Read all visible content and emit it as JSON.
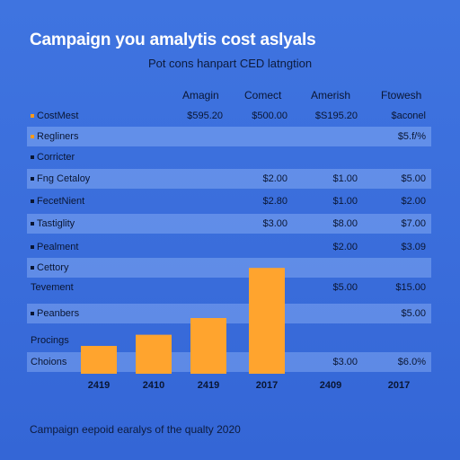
{
  "title": "Campaign you amalytis cost aslyals",
  "subtitle": "Pot cons hanpart CED latngtion",
  "columns": [
    "Amagin",
    "Comect",
    "Amerish",
    "Ftowesh"
  ],
  "rows": [
    {
      "label": "CostMest",
      "cells": [
        "$595.20",
        "$500.00",
        "$S195.20",
        "$aconel"
      ],
      "band": false,
      "bullet": "orange"
    },
    {
      "label": "Regliners",
      "cells": [
        "",
        "",
        "",
        "$5.f/%"
      ],
      "band": true,
      "bullet": "orange"
    },
    {
      "label": "Corricter",
      "cells": [
        "",
        "",
        "",
        ""
      ],
      "band": false,
      "bullet": "dot"
    },
    {
      "label": "Fng Cetaloy",
      "cells": [
        "",
        "$2.00",
        "$1.00",
        "$5.00"
      ],
      "band": true,
      "bullet": "square"
    },
    {
      "label": "FecetNient",
      "cells": [
        "",
        "$2.80",
        "$1.00",
        "$2.00"
      ],
      "band": false,
      "bullet": "square"
    },
    {
      "label": "Tastiglity",
      "cells": [
        "",
        "$3.00",
        "$8.00",
        "$7.00"
      ],
      "band": true,
      "bullet": "square"
    },
    {
      "label": "Pealment",
      "cells": [
        "",
        "",
        "$2.00",
        "$3.09"
      ],
      "band": false,
      "bullet": "square"
    },
    {
      "label": "Cettory",
      "cells": [
        "",
        "",
        "",
        ""
      ],
      "band": true,
      "bullet": "square"
    },
    {
      "label": "Tevement",
      "cells": [
        "",
        "",
        "$5.00",
        "$15.00"
      ],
      "band": false,
      "bullet": "none"
    },
    {
      "label": "Peanbers",
      "cells": [
        "",
        "",
        "",
        "$5.00"
      ],
      "band": true,
      "bullet": "square"
    },
    {
      "label": "Procings",
      "cells": [
        "",
        "",
        "",
        ""
      ],
      "band": false,
      "bullet": "none"
    },
    {
      "label": "Choions",
      "cells": [
        "",
        "",
        "$3.00",
        "$6.0%"
      ],
      "band": true,
      "bullet": "none"
    }
  ],
  "chart_data": {
    "type": "bar",
    "categories": [
      "2419",
      "2410",
      "2419",
      "2017",
      "2409",
      "2017"
    ],
    "values": [
      2.5,
      3.5,
      5.0,
      9.5,
      0,
      0
    ],
    "ylim": [
      0,
      10
    ],
    "bar_color": "#ffa42e",
    "grid": false
  },
  "footer": "Campaign eepoid earalys of the qualty 2020"
}
